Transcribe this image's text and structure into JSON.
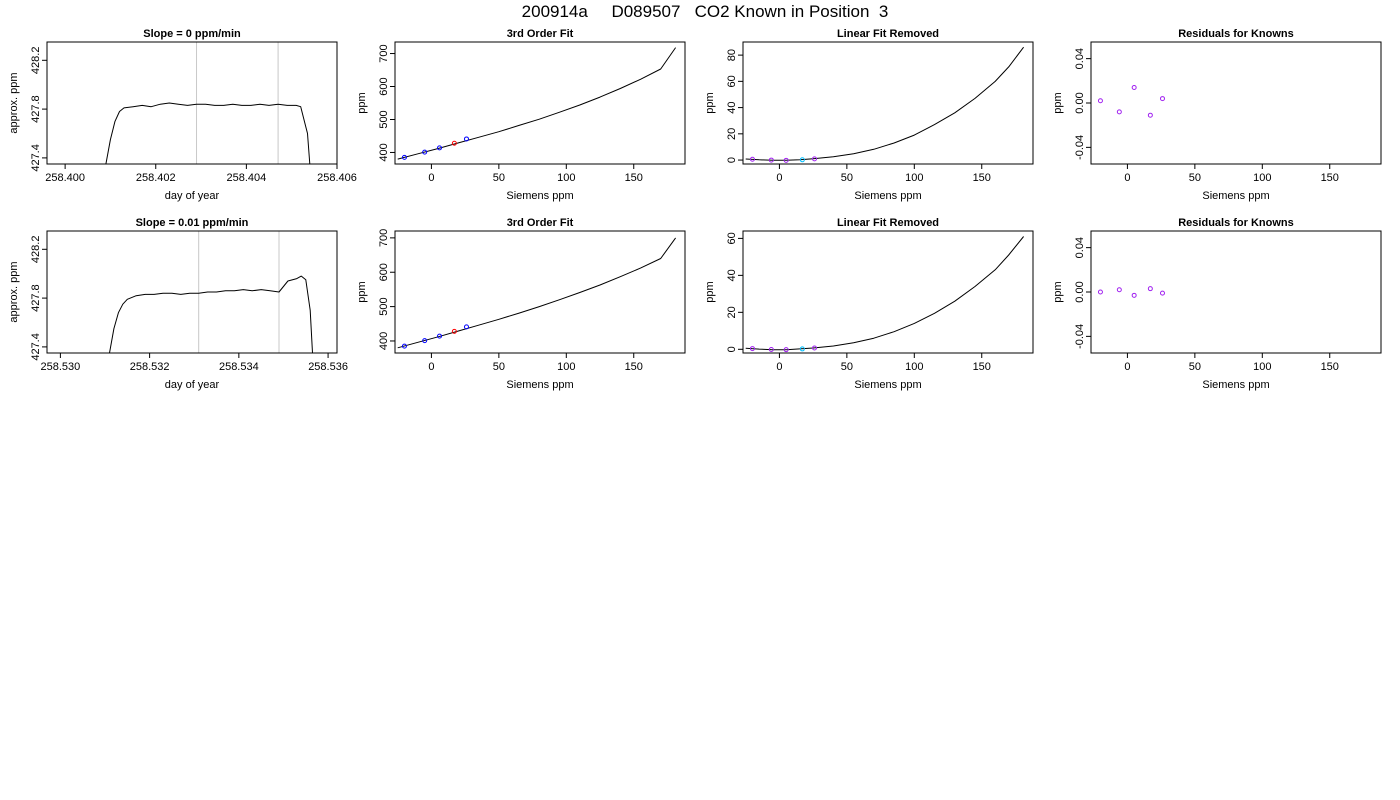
{
  "figure": {
    "title": "200914a     D089507   CO2 Known in Position  3"
  },
  "colors": {
    "frame": "#000000",
    "curve": "#000000",
    "vline": "#c8c8c8",
    "point_blue": "#0000ff",
    "point_purple": "#a020f0",
    "point_cyan": "#00bfff",
    "point_red": "#ff0000"
  },
  "chart_data": [
    {
      "id": "r1c1",
      "type": "line",
      "title": "Slope =  0  ppm/min",
      "xlabel": "day of year",
      "ylabel": "approx. ppm",
      "xlim": [
        258.3996,
        258.406
      ],
      "ylim": [
        427.35,
        428.35
      ],
      "xticks": [
        258.4,
        258.402,
        258.404,
        258.406
      ],
      "xtick_labels": [
        "258.400",
        "258.402",
        "258.404",
        "258.406"
      ],
      "yticks": [
        427.4,
        427.8,
        428.2
      ],
      "ytick_labels": [
        "427.4",
        "427.8",
        "428.2"
      ],
      "vlines": [
        258.4029,
        258.4047
      ],
      "series": [
        {
          "x": [
            258.4009,
            258.401,
            258.4011,
            258.4012,
            258.4013,
            258.4015,
            258.4017,
            258.4019,
            258.4021,
            258.4023,
            258.4025,
            258.4027,
            258.4029,
            258.4031,
            258.4033,
            258.4035,
            258.4037,
            258.4039,
            258.4041,
            258.4043,
            258.4045,
            258.4047,
            258.4049,
            258.4051,
            258.4052,
            258.40535,
            258.4054
          ],
          "y": [
            427.35,
            427.55,
            427.7,
            427.78,
            427.81,
            427.82,
            427.83,
            427.82,
            427.84,
            427.85,
            427.84,
            427.83,
            427.84,
            427.84,
            427.83,
            427.83,
            427.84,
            427.83,
            427.83,
            427.84,
            427.83,
            427.84,
            427.83,
            427.83,
            427.82,
            427.6,
            427.35
          ]
        }
      ],
      "points": []
    },
    {
      "id": "r1c2",
      "type": "line",
      "title": "3rd Order Fit",
      "xlabel": "Siemens ppm",
      "ylabel": "ppm",
      "xlim": [
        -27,
        188
      ],
      "ylim": [
        365,
        735
      ],
      "xticks": [
        0,
        50,
        100,
        150
      ],
      "xtick_labels": [
        "0",
        "50",
        "100",
        "150"
      ],
      "yticks": [
        400,
        500,
        600,
        700
      ],
      "ytick_labels": [
        "400",
        "500",
        "600",
        "700"
      ],
      "vlines": [],
      "series": [
        {
          "x": [
            -25,
            -10,
            5,
            20,
            35,
            50,
            65,
            80,
            95,
            110,
            125,
            140,
            155,
            170,
            181
          ],
          "y": [
            380,
            396,
            412,
            429,
            446,
            463,
            482,
            501,
            522,
            544,
            568,
            594,
            622,
            653,
            718
          ]
        }
      ],
      "points": [
        {
          "x": -20,
          "y": 385,
          "color": "point_blue"
        },
        {
          "x": -5,
          "y": 401,
          "color": "point_blue"
        },
        {
          "x": 6,
          "y": 414,
          "color": "point_blue"
        },
        {
          "x": 17,
          "y": 428,
          "color": "point_red"
        },
        {
          "x": 26,
          "y": 441,
          "color": "point_blue"
        }
      ]
    },
    {
      "id": "r1c3",
      "type": "line",
      "title": "Linear Fit Removed",
      "xlabel": "Siemens ppm",
      "ylabel": "ppm",
      "xlim": [
        -27,
        188
      ],
      "ylim": [
        -3,
        90
      ],
      "xticks": [
        0,
        50,
        100,
        150
      ],
      "xtick_labels": [
        "0",
        "50",
        "100",
        "150"
      ],
      "yticks": [
        0,
        20,
        40,
        60,
        80
      ],
      "ytick_labels": [
        "0",
        "20",
        "40",
        "60",
        "80"
      ],
      "vlines": [],
      "series": [
        {
          "x": [
            -25,
            -15,
            -5,
            5,
            15,
            25,
            40,
            55,
            70,
            85,
            100,
            115,
            130,
            145,
            160,
            170,
            181
          ],
          "y": [
            0.8,
            0.2,
            -0.2,
            -0.2,
            0.3,
            1.0,
            2.5,
            4.8,
            8.2,
            13,
            19,
            27,
            36,
            47,
            60,
            71,
            86
          ]
        }
      ],
      "points": [
        {
          "x": -20,
          "y": 0.6,
          "color": "point_purple"
        },
        {
          "x": -6,
          "y": 0.0,
          "color": "point_purple"
        },
        {
          "x": 5,
          "y": -0.2,
          "color": "point_purple"
        },
        {
          "x": 17,
          "y": 0.2,
          "color": "point_cyan"
        },
        {
          "x": 26,
          "y": 0.9,
          "color": "point_purple"
        }
      ]
    },
    {
      "id": "r1c4",
      "type": "scatter",
      "title": "Residuals for Knowns",
      "xlabel": "Siemens ppm",
      "ylabel": "ppm",
      "xlim": [
        -27,
        188
      ],
      "ylim": [
        -0.055,
        0.055
      ],
      "xticks": [
        0,
        50,
        100,
        150
      ],
      "xtick_labels": [
        "0",
        "50",
        "100",
        "150"
      ],
      "yticks": [
        -0.04,
        0.0,
        0.04
      ],
      "ytick_labels": [
        "-0.04",
        "0.00",
        "0.04"
      ],
      "vlines": [],
      "series": [],
      "points": [
        {
          "x": -20,
          "y": 0.002,
          "color": "point_purple"
        },
        {
          "x": -6,
          "y": -0.008,
          "color": "point_purple"
        },
        {
          "x": 5,
          "y": 0.014,
          "color": "point_purple"
        },
        {
          "x": 17,
          "y": -0.011,
          "color": "point_purple"
        },
        {
          "x": 26,
          "y": 0.004,
          "color": "point_purple"
        }
      ]
    },
    {
      "id": "r2c1",
      "type": "line",
      "title": "Slope =  0.01  ppm/min",
      "xlabel": "day of year",
      "ylabel": "approx. ppm",
      "xlim": [
        258.5297,
        258.5362
      ],
      "ylim": [
        427.35,
        428.35
      ],
      "xticks": [
        258.53,
        258.532,
        258.534,
        258.536
      ],
      "xtick_labels": [
        "258.530",
        "258.532",
        "258.534",
        "258.536"
      ],
      "vlines": [
        258.5331,
        258.5349
      ],
      "yticks": [
        427.4,
        427.8,
        428.2
      ],
      "ytick_labels": [
        "427.4",
        "427.8",
        "428.2"
      ],
      "series": [
        {
          "x": [
            258.5311,
            258.5312,
            258.5313,
            258.5314,
            258.5315,
            258.5317,
            258.5319,
            258.5321,
            258.5323,
            258.5325,
            258.5327,
            258.5329,
            258.5331,
            258.5333,
            258.5335,
            258.5337,
            258.5339,
            258.5341,
            258.5343,
            258.5345,
            258.5347,
            258.5349,
            258.5351,
            258.5353,
            258.5354,
            258.5355,
            258.5356,
            258.53565
          ],
          "y": [
            427.35,
            427.55,
            427.68,
            427.75,
            427.79,
            427.82,
            427.83,
            427.83,
            427.84,
            427.84,
            427.83,
            427.84,
            427.84,
            427.85,
            427.85,
            427.86,
            427.86,
            427.87,
            427.86,
            427.87,
            427.86,
            427.85,
            427.94,
            427.96,
            427.98,
            427.95,
            427.7,
            427.35
          ]
        }
      ],
      "points": []
    },
    {
      "id": "r2c2",
      "type": "line",
      "title": "3rd Order Fit",
      "xlabel": "Siemens ppm",
      "ylabel": "ppm",
      "xlim": [
        -27,
        188
      ],
      "ylim": [
        365,
        720
      ],
      "xticks": [
        0,
        50,
        100,
        150
      ],
      "xtick_labels": [
        "0",
        "50",
        "100",
        "150"
      ],
      "yticks": [
        400,
        500,
        600,
        700
      ],
      "ytick_labels": [
        "400",
        "500",
        "600",
        "700"
      ],
      "vlines": [],
      "series": [
        {
          "x": [
            -25,
            -10,
            5,
            20,
            35,
            50,
            65,
            80,
            95,
            110,
            125,
            140,
            155,
            170,
            181
          ],
          "y": [
            380,
            396,
            412,
            429,
            446,
            463,
            481,
            500,
            520,
            541,
            563,
            587,
            612,
            640,
            700
          ]
        }
      ],
      "points": [
        {
          "x": -20,
          "y": 385,
          "color": "point_blue"
        },
        {
          "x": -5,
          "y": 401,
          "color": "point_blue"
        },
        {
          "x": 6,
          "y": 414,
          "color": "point_blue"
        },
        {
          "x": 17,
          "y": 428,
          "color": "point_red"
        },
        {
          "x": 26,
          "y": 441,
          "color": "point_blue"
        }
      ]
    },
    {
      "id": "r2c3",
      "type": "line",
      "title": "Linear Fit Removed",
      "xlabel": "Siemens ppm",
      "ylabel": "ppm",
      "xlim": [
        -27,
        188
      ],
      "ylim": [
        -2,
        64
      ],
      "xticks": [
        0,
        50,
        100,
        150
      ],
      "xtick_labels": [
        "0",
        "50",
        "100",
        "150"
      ],
      "yticks": [
        0,
        20,
        40,
        60
      ],
      "ytick_labels": [
        "0",
        "20",
        "40",
        "60"
      ],
      "vlines": [],
      "series": [
        {
          "x": [
            -25,
            -15,
            -5,
            5,
            15,
            25,
            40,
            55,
            70,
            85,
            100,
            115,
            130,
            145,
            160,
            170,
            181
          ],
          "y": [
            0.6,
            0.1,
            -0.2,
            -0.2,
            0.2,
            0.7,
            1.8,
            3.5,
            6,
            9.5,
            14,
            19.5,
            26,
            34,
            43,
            51,
            61
          ]
        }
      ],
      "points": [
        {
          "x": -20,
          "y": 0.4,
          "color": "point_purple"
        },
        {
          "x": -6,
          "y": -0.1,
          "color": "point_purple"
        },
        {
          "x": 5,
          "y": -0.2,
          "color": "point_purple"
        },
        {
          "x": 17,
          "y": 0.2,
          "color": "point_cyan"
        },
        {
          "x": 26,
          "y": 0.7,
          "color": "point_purple"
        }
      ]
    },
    {
      "id": "r2c4",
      "type": "scatter",
      "title": "Residuals for Knowns",
      "xlabel": "Siemens ppm",
      "ylabel": "ppm",
      "xlim": [
        -27,
        188
      ],
      "ylim": [
        -0.055,
        0.055
      ],
      "xticks": [
        0,
        50,
        100,
        150
      ],
      "xtick_labels": [
        "0",
        "50",
        "100",
        "150"
      ],
      "yticks": [
        -0.04,
        0.0,
        0.04
      ],
      "ytick_labels": [
        "-0.04",
        "0.00",
        "0.04"
      ],
      "vlines": [],
      "series": [],
      "points": [
        {
          "x": -20,
          "y": 0.0,
          "color": "point_purple"
        },
        {
          "x": -6,
          "y": 0.002,
          "color": "point_purple"
        },
        {
          "x": 5,
          "y": -0.003,
          "color": "point_purple"
        },
        {
          "x": 17,
          "y": 0.003,
          "color": "point_purple"
        },
        {
          "x": 26,
          "y": -0.001,
          "color": "point_purple"
        }
      ]
    }
  ]
}
